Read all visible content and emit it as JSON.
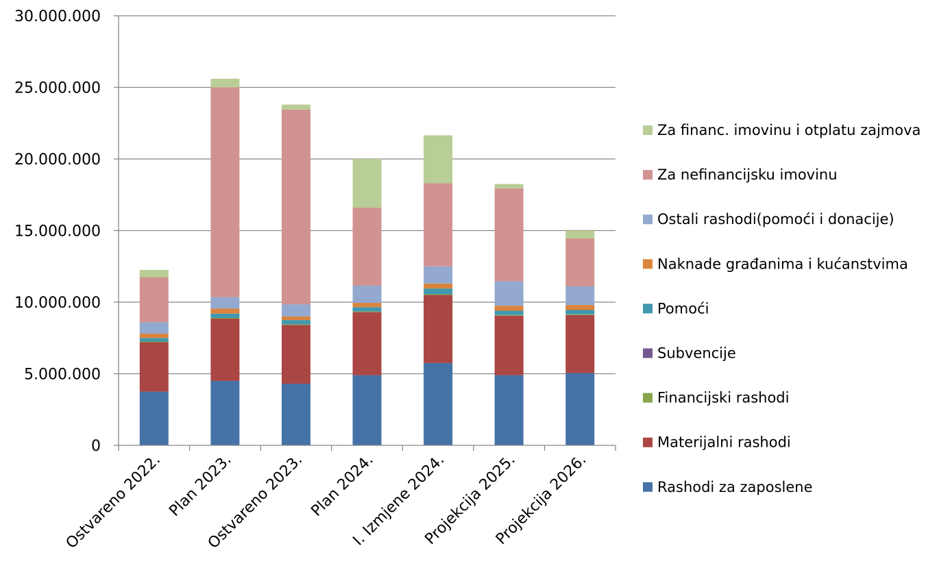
{
  "chart_data": {
    "type": "bar",
    "stacked": true,
    "title": "",
    "xlabel": "",
    "ylabel": "",
    "ylim": [
      0,
      30000000
    ],
    "yticks": [
      0,
      5000000,
      10000000,
      15000000,
      20000000,
      25000000,
      30000000
    ],
    "ytick_labels": [
      "0",
      "5.000.000",
      "10.000.000",
      "15.000.000",
      "20.000.000",
      "25.000.000",
      "30.000.000"
    ],
    "grid": true,
    "legend_position": "right",
    "categories": [
      "Ostvareno 2022.",
      "Plan 2023.",
      "Ostvareno 2023.",
      "Plan 2024.",
      "I. Izmjene 2024.",
      "Projekcija 2025.",
      "Projekcija 2026."
    ],
    "series": [
      {
        "name": "Rashodi za zaposlene",
        "color": "#4572A7",
        "values": [
          3750000,
          4500000,
          4300000,
          4900000,
          5750000,
          4900000,
          5050000
        ]
      },
      {
        "name": "Materijalni rashodi",
        "color": "#AA4643",
        "values": [
          3450000,
          4350000,
          4100000,
          4400000,
          4750000,
          4150000,
          4050000
        ]
      },
      {
        "name": "Financijski rashodi",
        "color": "#89A54E",
        "values": [
          50000,
          50000,
          50000,
          50000,
          50000,
          50000,
          50000
        ]
      },
      {
        "name": "Subvencije",
        "color": "#71588F",
        "values": [
          0,
          0,
          0,
          0,
          0,
          0,
          0
        ]
      },
      {
        "name": "Pomoći",
        "color": "#4198AF",
        "values": [
          250000,
          300000,
          300000,
          300000,
          400000,
          300000,
          300000
        ]
      },
      {
        "name": "Naknade građanima i kućanstvima",
        "color": "#DB843D",
        "values": [
          300000,
          350000,
          250000,
          300000,
          350000,
          350000,
          350000
        ]
      },
      {
        "name": "Ostali rashodi(pomoći i donacije)",
        "color": "#93A9CF",
        "values": [
          800000,
          800000,
          850000,
          1200000,
          1200000,
          1700000,
          1300000
        ]
      },
      {
        "name": "Za nefinancijsku imovinu",
        "color": "#D19392",
        "values": [
          3150000,
          14650000,
          13600000,
          5450000,
          5800000,
          6500000,
          3350000
        ]
      },
      {
        "name": "Za financ. imovinu i otplatu zajmova",
        "color": "#B9CD96",
        "values": [
          500000,
          600000,
          350000,
          3400000,
          3350000,
          300000,
          550000
        ]
      }
    ]
  }
}
